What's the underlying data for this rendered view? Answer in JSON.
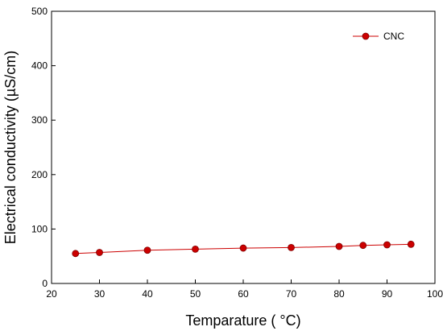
{
  "chart_data": {
    "type": "line",
    "title": "",
    "xlabel": "Temparature ( °C)",
    "ylabel": "Electrical conductivity (µS/cm)",
    "xlim": [
      20,
      100
    ],
    "ylim": [
      0,
      500
    ],
    "xticks": [
      20,
      30,
      40,
      50,
      60,
      70,
      80,
      90,
      100
    ],
    "yticks": [
      0,
      100,
      200,
      300,
      400,
      500
    ],
    "grid": false,
    "legend_position": "top-right",
    "series": [
      {
        "name": "CNC",
        "color": "#cc0000",
        "x": [
          25,
          30,
          40,
          50,
          60,
          70,
          80,
          85,
          90,
          95
        ],
        "y": [
          55,
          57,
          61,
          63,
          65,
          66,
          68,
          70,
          71,
          72
        ]
      }
    ]
  }
}
